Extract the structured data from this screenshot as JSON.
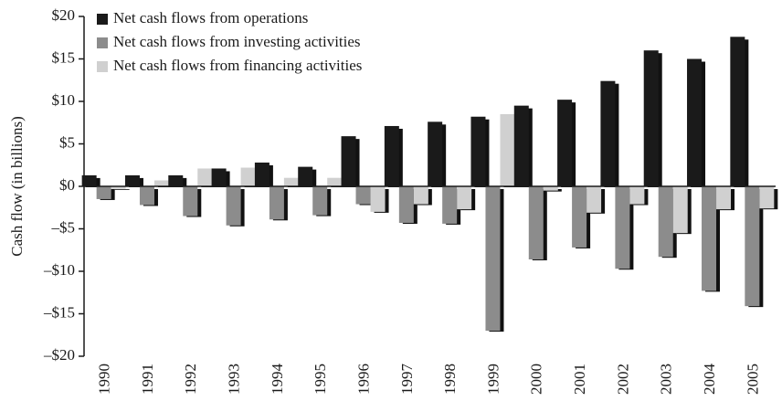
{
  "chart_data": {
    "type": "bar",
    "y_label": "Cash flow (in billions)",
    "categories": [
      "1990",
      "1991",
      "1992",
      "1993",
      "1994",
      "1995",
      "1996",
      "1997",
      "1998",
      "1999",
      "2000",
      "2001",
      "2002",
      "2003",
      "2004",
      "2005"
    ],
    "series": [
      {
        "name": "Net cash flows from operations",
        "color": "#1a1a1a",
        "values": [
          1.3,
          1.3,
          1.3,
          2.1,
          2.8,
          2.3,
          5.9,
          7.1,
          7.6,
          8.2,
          9.5,
          10.2,
          12.4,
          16.0,
          15.0,
          17.6
        ]
      },
      {
        "name": "Net cash flows from investing activities",
        "color": "#8c8c8c",
        "values": [
          -1.5,
          -2.2,
          -3.5,
          -4.6,
          -3.9,
          -3.4,
          -2.1,
          -4.3,
          -4.4,
          -17.0,
          -8.6,
          -7.2,
          -9.7,
          -8.3,
          -12.3,
          -14.1
        ]
      },
      {
        "name": "Net cash flows from financing activities",
        "color": "#d0d0d0",
        "values": [
          -0.3,
          0.7,
          2.1,
          2.2,
          1.0,
          1.0,
          -3.0,
          -2.1,
          -2.7,
          8.5,
          -0.5,
          -3.1,
          -2.1,
          -5.5,
          -2.7,
          -2.6
        ]
      }
    ],
    "ylim": [
      -20,
      20
    ],
    "yticks": [
      {
        "value": -20,
        "label": "–$20"
      },
      {
        "value": -15,
        "label": "–$15"
      },
      {
        "value": -10,
        "label": "–$10"
      },
      {
        "value": -5,
        "label": "–$5"
      },
      {
        "value": 0,
        "label": "$0"
      },
      {
        "value": 5,
        "label": "$5"
      },
      {
        "value": 10,
        "label": "$10"
      },
      {
        "value": 15,
        "label": "$15"
      },
      {
        "value": 20,
        "label": "$20"
      }
    ],
    "legend": "upper left"
  }
}
